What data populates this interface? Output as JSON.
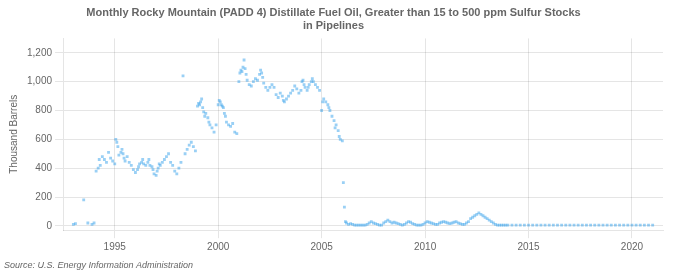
{
  "chart_data": {
    "type": "scatter",
    "title": "Monthly Rocky Mountain (PADD 4) Distillate Fuel Oil, Greater than 15 to 500 ppm Sulfur Stocks\nin Pipelines",
    "ylabel": "Thousand Barrels",
    "annotations": [
      "Source: U.S. Energy Information Administration"
    ],
    "marker": "square",
    "grid": true,
    "xlim": [
      1992.5,
      2021.5
    ],
    "ylim": [
      -30,
      1300
    ],
    "xticks": [
      1995,
      2000,
      2005,
      2010,
      2015,
      2020
    ],
    "yticks": [
      0,
      200,
      400,
      600,
      800,
      {
        "value": 1000,
        "label": "1,000"
      },
      {
        "value": 1200,
        "label": "1,200"
      }
    ],
    "x": [
      1993.0,
      1993.1,
      1993.5,
      1993.7,
      1993.9,
      1994.0,
      1994.1,
      1994.2,
      1994.25,
      1994.3,
      1994.4,
      1994.5,
      1994.6,
      1994.7,
      1994.8,
      1994.9,
      1995.0,
      1995.05,
      1995.1,
      1995.15,
      1995.2,
      1995.3,
      1995.35,
      1995.4,
      1995.45,
      1995.5,
      1995.6,
      1995.7,
      1995.8,
      1995.9,
      1996.0,
      1996.1,
      1996.15,
      1996.2,
      1996.3,
      1996.35,
      1996.4,
      1996.5,
      1996.6,
      1996.65,
      1996.7,
      1996.8,
      1996.85,
      1996.9,
      1997.0,
      1997.05,
      1997.1,
      1997.15,
      1997.2,
      1997.3,
      1997.4,
      1997.5,
      1997.6,
      1997.7,
      1997.8,
      1997.9,
      1998.0,
      1998.1,
      1998.2,
      1998.3,
      1998.4,
      1998.5,
      1998.6,
      1998.7,
      1998.8,
      1998.9,
      1999.0,
      1999.05,
      1999.1,
      1999.15,
      1999.2,
      1999.25,
      1999.3,
      1999.35,
      1999.4,
      1999.5,
      1999.55,
      1999.6,
      1999.7,
      1999.8,
      1999.9,
      2000.0,
      2000.05,
      2000.1,
      2000.15,
      2000.2,
      2000.25,
      2000.3,
      2000.35,
      2000.4,
      2000.5,
      2000.6,
      2000.7,
      2000.8,
      2000.9,
      2001.0,
      2001.05,
      2001.1,
      2001.15,
      2001.2,
      2001.25,
      2001.3,
      2001.35,
      2001.4,
      2001.5,
      2001.6,
      2001.7,
      2001.8,
      2001.9,
      2002.0,
      2002.05,
      2002.1,
      2002.15,
      2002.2,
      2002.3,
      2002.4,
      2002.5,
      2002.6,
      2002.7,
      2002.8,
      2002.9,
      2003.0,
      2003.1,
      2003.15,
      2003.2,
      2003.3,
      2003.4,
      2003.5,
      2003.6,
      2003.7,
      2003.8,
      2003.9,
      2004.0,
      2004.05,
      2004.1,
      2004.15,
      2004.2,
      2004.3,
      2004.35,
      2004.4,
      2004.5,
      2004.55,
      2004.6,
      2004.7,
      2004.8,
      2004.9,
      2005.0,
      2005.05,
      2005.1,
      2005.2,
      2005.3,
      2005.35,
      2005.4,
      2005.5,
      2005.6,
      2005.65,
      2005.7,
      2005.8,
      2005.85,
      2005.9,
      2006.0,
      2006.05,
      2006.1,
      2006.15,
      2006.2,
      2006.3,
      2006.4,
      2006.5,
      2006.6,
      2006.7,
      2006.8,
      2006.9,
      2007.0,
      2007.1,
      2007.2,
      2007.3,
      2007.4,
      2007.5,
      2007.6,
      2007.7,
      2007.8,
      2007.9,
      2008.0,
      2008.1,
      2008.2,
      2008.3,
      2008.4,
      2008.5,
      2008.6,
      2008.7,
      2008.8,
      2008.9,
      2009.0,
      2009.1,
      2009.2,
      2009.3,
      2009.4,
      2009.5,
      2009.6,
      2009.7,
      2009.8,
      2009.9,
      2010.0,
      2010.1,
      2010.2,
      2010.3,
      2010.4,
      2010.5,
      2010.6,
      2010.7,
      2010.8,
      2010.9,
      2011.0,
      2011.1,
      2011.2,
      2011.3,
      2011.4,
      2011.5,
      2011.6,
      2011.7,
      2011.8,
      2011.9,
      2012.0,
      2012.1,
      2012.2,
      2012.3,
      2012.4,
      2012.5,
      2012.6,
      2012.7,
      2012.8,
      2012.9,
      2013.0,
      2013.1,
      2013.2,
      2013.3,
      2013.4,
      2013.5,
      2013.6,
      2013.7,
      2013.8,
      2013.9,
      2014.0,
      2014.2,
      2014.4,
      2014.6,
      2014.8,
      2015.0,
      2015.2,
      2015.4,
      2015.6,
      2015.8,
      2016.0,
      2016.2,
      2016.4,
      2016.6,
      2016.8,
      2017.0,
      2017.2,
      2017.4,
      2017.6,
      2017.8,
      2018.0,
      2018.2,
      2018.4,
      2018.6,
      2018.8,
      2019.0,
      2019.2,
      2019.4,
      2019.6,
      2019.8,
      2020.0,
      2020.2,
      2020.4,
      2020.6,
      2020.8,
      2021.0
    ],
    "values": [
      10,
      15,
      180,
      20,
      10,
      20,
      380,
      400,
      460,
      420,
      480,
      460,
      440,
      510,
      470,
      450,
      430,
      600,
      580,
      550,
      490,
      510,
      530,
      500,
      470,
      450,
      480,
      440,
      420,
      390,
      370,
      390,
      410,
      430,
      440,
      460,
      430,
      420,
      440,
      460,
      420,
      410,
      390,
      360,
      350,
      380,
      400,
      430,
      420,
      440,
      460,
      480,
      500,
      440,
      420,
      380,
      360,
      400,
      440,
      1040,
      500,
      530,
      560,
      580,
      550,
      520,
      830,
      850,
      840,
      860,
      880,
      820,
      790,
      760,
      780,
      750,
      720,
      700,
      680,
      650,
      700,
      840,
      870,
      860,
      840,
      830,
      820,
      780,
      760,
      720,
      700,
      690,
      710,
      650,
      640,
      1000,
      1060,
      1080,
      1070,
      1100,
      1150,
      1090,
      1050,
      1010,
      980,
      970,
      1000,
      1020,
      1010,
      1050,
      1080,
      1060,
      1030,
      990,
      960,
      940,
      960,
      980,
      960,
      910,
      890,
      920,
      900,
      870,
      860,
      880,
      900,
      920,
      940,
      970,
      950,
      920,
      940,
      1000,
      1010,
      980,
      960,
      940,
      960,
      980,
      1000,
      1020,
      1000,
      980,
      960,
      940,
      800,
      860,
      880,
      860,
      840,
      820,
      800,
      760,
      730,
      680,
      700,
      660,
      620,
      600,
      590,
      300,
      130,
      30,
      20,
      10,
      15,
      10,
      5,
      5,
      5,
      5,
      5,
      5,
      10,
      20,
      30,
      20,
      15,
      10,
      5,
      5,
      20,
      30,
      40,
      30,
      20,
      25,
      20,
      15,
      10,
      5,
      10,
      20,
      30,
      25,
      15,
      10,
      5,
      5,
      5,
      10,
      20,
      30,
      25,
      20,
      15,
      10,
      10,
      20,
      25,
      30,
      25,
      20,
      15,
      20,
      25,
      30,
      20,
      15,
      10,
      10,
      20,
      30,
      50,
      60,
      70,
      80,
      90,
      80,
      70,
      60,
      50,
      40,
      30,
      20,
      10,
      5,
      5,
      5,
      5,
      5,
      5,
      5,
      5,
      5,
      5,
      5,
      5,
      5,
      5,
      5,
      5,
      5,
      5,
      5,
      5,
      5,
      5,
      5,
      5,
      5,
      5,
      5,
      5,
      5,
      5,
      5,
      5,
      5,
      5,
      5,
      5,
      5,
      5,
      5,
      5,
      5
    ]
  }
}
